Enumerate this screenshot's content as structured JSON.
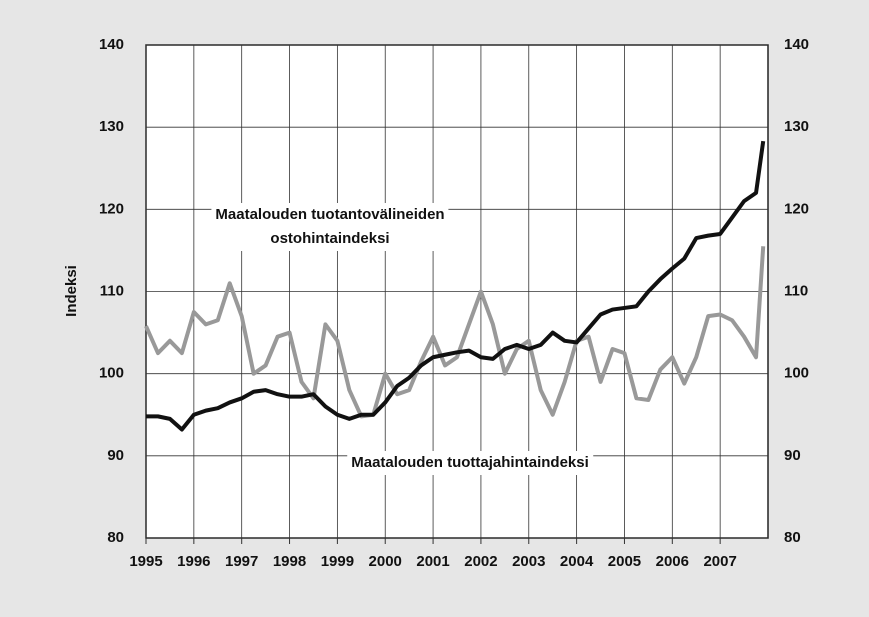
{
  "chart_data": {
    "type": "line",
    "y_label": "Indeksi",
    "x": [
      1995,
      1995.25,
      1995.5,
      1995.75,
      1996,
      1996.25,
      1996.5,
      1996.75,
      1997,
      1997.25,
      1997.5,
      1997.75,
      1998,
      1998.25,
      1998.5,
      1998.75,
      1999,
      1999.25,
      1999.5,
      1999.75,
      2000,
      2000.25,
      2000.5,
      2000.75,
      2001,
      2001.25,
      2001.5,
      2001.75,
      2002,
      2002.25,
      2002.5,
      2002.75,
      2003,
      2003.25,
      2003.5,
      2003.75,
      2004,
      2004.25,
      2004.5,
      2004.75,
      2005,
      2005.25,
      2005.5,
      2005.75,
      2006,
      2006.25,
      2006.5,
      2006.75,
      2007,
      2007.25,
      2007.5,
      2007.75,
      2007.9
    ],
    "series": [
      {
        "name": "Maatalouden tuotantovälineiden\nostohintaindeksi",
        "color": "#111111",
        "values": [
          94.8,
          94.8,
          94.5,
          93.2,
          95,
          95.5,
          95.8,
          96.5,
          97,
          97.8,
          98,
          97.5,
          97.2,
          97.2,
          97.5,
          96,
          95,
          94.5,
          95,
          95,
          96.5,
          98.5,
          99.5,
          101,
          102,
          102.3,
          102.6,
          102.8,
          102,
          101.8,
          103,
          103.5,
          103,
          103.5,
          105,
          104,
          103.8,
          105.5,
          107.2,
          107.8,
          108,
          108.2,
          110,
          111.5,
          112.8,
          114,
          116.5,
          116.8,
          117,
          119,
          121,
          122,
          128.3
        ]
      },
      {
        "name": "Maatalouden tuottajahintaindeksi",
        "color": "#999999",
        "values": [
          105.8,
          102.5,
          104,
          102.5,
          107.5,
          106,
          106.5,
          111,
          107,
          100,
          101,
          104.5,
          105,
          99,
          97,
          106,
          104,
          98,
          94.8,
          95,
          100,
          97.5,
          98,
          101.5,
          104.5,
          101,
          102,
          106,
          110,
          106,
          100,
          103,
          104,
          98,
          95,
          99,
          104,
          104.5,
          99,
          103,
          102.5,
          97,
          96.8,
          100.5,
          102,
          98.8,
          102,
          107,
          107.2,
          106.5,
          104.5,
          102,
          115.5
        ]
      }
    ],
    "xlim": [
      1995,
      2008
    ],
    "xticks": [
      1995,
      1996,
      1997,
      1998,
      1999,
      2000,
      2001,
      2002,
      2003,
      2004,
      2005,
      2006,
      2007
    ],
    "ylim": [
      80,
      140
    ],
    "yticks": [
      80,
      90,
      100,
      110,
      120,
      130,
      140
    ],
    "grid": true
  }
}
